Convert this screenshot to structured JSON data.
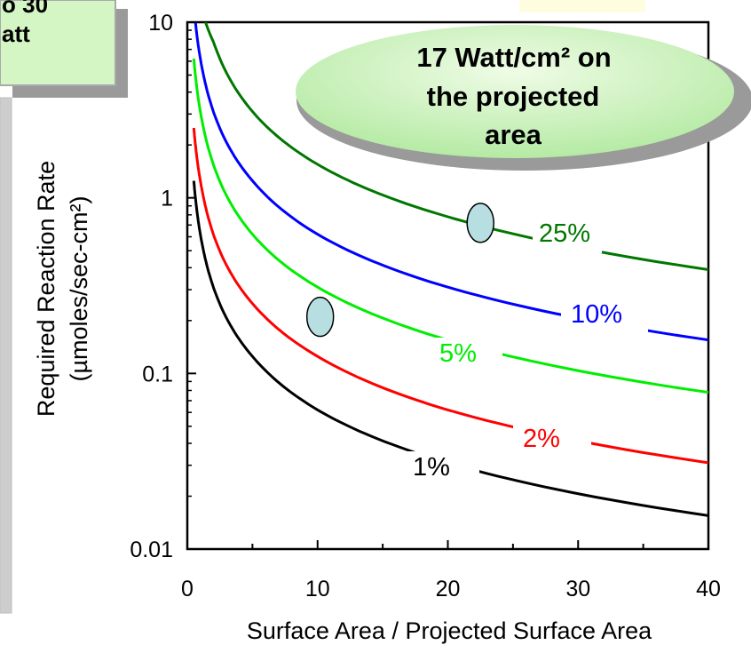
{
  "chart_data": {
    "type": "line",
    "xlabel": "Surface Area / Projected Surface Area",
    "ylabel_line1": "Required Reaction Rate",
    "ylabel_line2": "(µmoles/sec-cm²)",
    "xlim": [
      0,
      40
    ],
    "ylim": [
      0.01,
      10
    ],
    "y_scale": "log",
    "x_ticks": [
      "0",
      "10",
      "20",
      "30",
      "40"
    ],
    "y_ticks": [
      "10",
      "1",
      "0.1",
      "0.01"
    ],
    "grid": false,
    "callout": {
      "lines": [
        "17 Watt/cm² on",
        "the projected",
        "area"
      ]
    },
    "corner_box": {
      "lines": [
        "o 30",
        "att"
      ]
    },
    "series": [
      {
        "name": "1%",
        "color": "#000000",
        "x": [
          0.5,
          1,
          2,
          5,
          10,
          20,
          40
        ],
        "y": [
          1.25,
          0.62,
          0.31,
          0.125,
          0.062,
          0.031,
          0.0155
        ]
      },
      {
        "name": "2%",
        "color": "#ff0000",
        "x": [
          0.5,
          1,
          2,
          5,
          10,
          20,
          40
        ],
        "y": [
          2.5,
          1.25,
          0.62,
          0.25,
          0.125,
          0.062,
          0.031
        ]
      },
      {
        "name": "5%",
        "color": "#00ee00",
        "x": [
          0.5,
          1,
          2,
          5,
          10,
          20,
          40
        ],
        "y": [
          6.2,
          3.1,
          1.55,
          0.62,
          0.31,
          0.155,
          0.078
        ]
      },
      {
        "name": "10%",
        "color": "#0000ff",
        "x": [
          0.5,
          1,
          2,
          5,
          10,
          20,
          40
        ],
        "y": [
          12.5,
          6.2,
          3.1,
          1.25,
          0.62,
          0.31,
          0.155
        ]
      },
      {
        "name": "25%",
        "color": "#007700",
        "x": [
          1.4,
          2,
          5,
          10,
          20,
          40
        ],
        "y": [
          10,
          7.75,
          3.1,
          1.55,
          0.78,
          0.39
        ]
      }
    ],
    "markers": [
      {
        "x": 22.5,
        "y": 0.72
      },
      {
        "x": 10.2,
        "y": 0.21
      }
    ]
  }
}
